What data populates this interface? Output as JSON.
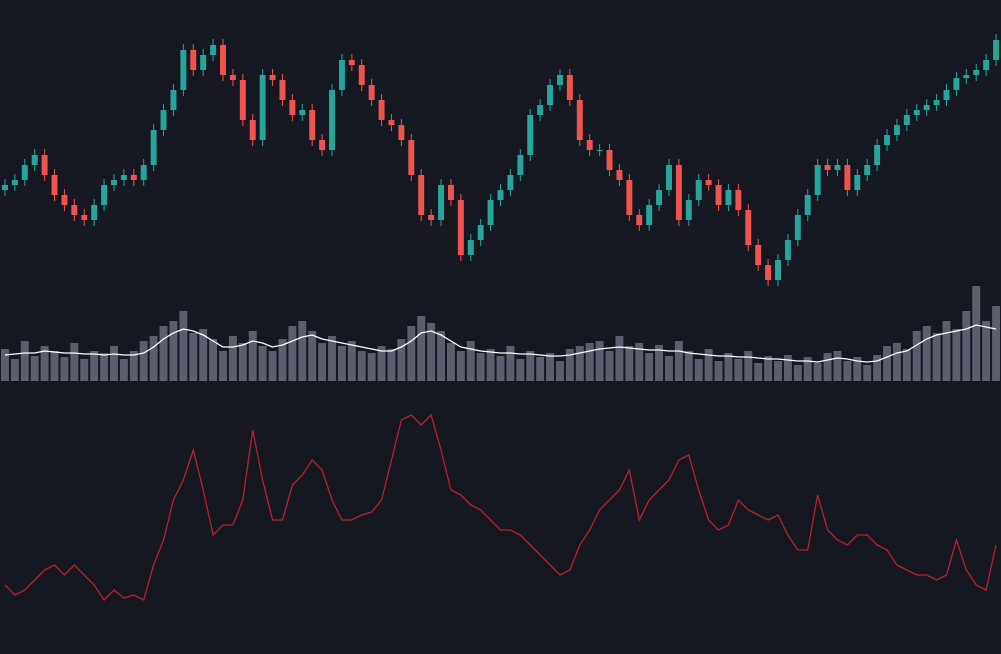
{
  "chart_data": [
    {
      "type": "candlestick",
      "up_color": "#26a69a",
      "down_color": "#ef5350",
      "ylim": [
        0,
        300
      ],
      "open": [
        110,
        115,
        120,
        135,
        145,
        125,
        105,
        95,
        85,
        80,
        95,
        115,
        120,
        125,
        120,
        135,
        170,
        190,
        210,
        250,
        230,
        245,
        255,
        225,
        220,
        180,
        160,
        225,
        220,
        200,
        185,
        190,
        160,
        150,
        210,
        240,
        235,
        215,
        200,
        180,
        175,
        160,
        125,
        85,
        80,
        115,
        100,
        45,
        60,
        75,
        100,
        110,
        125,
        145,
        185,
        195,
        215,
        225,
        200,
        160,
        150,
        150,
        130,
        120,
        85,
        75,
        95,
        110,
        135,
        80,
        100,
        120,
        115,
        95,
        110,
        90,
        55,
        35,
        20,
        40,
        60,
        85,
        105,
        135,
        130,
        135,
        110,
        125,
        135,
        155,
        165,
        175,
        185,
        190,
        195,
        200,
        210,
        222,
        225,
        230,
        240
      ],
      "high": [
        121,
        126,
        141,
        151,
        151,
        131,
        111,
        101,
        91,
        101,
        121,
        126,
        131,
        131,
        141,
        176,
        196,
        216,
        256,
        256,
        251,
        261,
        261,
        231,
        226,
        186,
        231,
        231,
        226,
        206,
        196,
        196,
        166,
        216,
        246,
        246,
        241,
        221,
        206,
        186,
        181,
        166,
        131,
        91,
        121,
        121,
        106,
        66,
        81,
        106,
        116,
        131,
        151,
        191,
        201,
        221,
        231,
        231,
        206,
        166,
        156,
        156,
        136,
        126,
        91,
        101,
        116,
        141,
        141,
        106,
        126,
        126,
        121,
        116,
        116,
        96,
        61,
        41,
        46,
        66,
        91,
        111,
        141,
        141,
        141,
        141,
        131,
        141,
        161,
        171,
        181,
        191,
        196,
        201,
        206,
        216,
        228,
        231,
        236,
        246,
        266
      ],
      "low": [
        104,
        109,
        114,
        129,
        119,
        99,
        89,
        79,
        74,
        74,
        89,
        109,
        114,
        114,
        114,
        129,
        164,
        184,
        204,
        224,
        224,
        239,
        219,
        214,
        174,
        154,
        154,
        214,
        194,
        179,
        179,
        154,
        144,
        144,
        204,
        229,
        209,
        194,
        174,
        169,
        154,
        119,
        79,
        74,
        74,
        94,
        39,
        39,
        54,
        69,
        94,
        104,
        119,
        139,
        179,
        189,
        209,
        194,
        154,
        144,
        144,
        124,
        114,
        79,
        69,
        69,
        89,
        104,
        74,
        74,
        94,
        109,
        89,
        89,
        84,
        49,
        29,
        14,
        14,
        34,
        54,
        79,
        99,
        124,
        124,
        104,
        104,
        119,
        129,
        149,
        159,
        169,
        179,
        184,
        189,
        194,
        204,
        216,
        219,
        224,
        234
      ],
      "close": [
        115,
        120,
        135,
        145,
        125,
        105,
        95,
        85,
        80,
        95,
        115,
        120,
        125,
        120,
        135,
        170,
        190,
        210,
        250,
        230,
        245,
        255,
        225,
        220,
        180,
        160,
        225,
        220,
        200,
        185,
        190,
        160,
        150,
        210,
        240,
        235,
        215,
        200,
        180,
        175,
        160,
        125,
        85,
        80,
        115,
        100,
        45,
        60,
        75,
        100,
        110,
        125,
        145,
        185,
        195,
        215,
        225,
        200,
        160,
        150,
        150,
        130,
        120,
        85,
        75,
        95,
        110,
        135,
        80,
        100,
        120,
        115,
        95,
        110,
        90,
        55,
        35,
        20,
        40,
        60,
        85,
        105,
        135,
        130,
        135,
        110,
        125,
        135,
        155,
        165,
        175,
        185,
        190,
        195,
        200,
        210,
        222,
        225,
        230,
        240,
        260
      ]
    },
    {
      "type": "bar",
      "color": "#5b5e6c",
      "ylim": [
        0,
        140
      ],
      "values": [
        32,
        22,
        40,
        25,
        35,
        30,
        24,
        38,
        22,
        30,
        28,
        35,
        22,
        30,
        40,
        45,
        55,
        60,
        70,
        48,
        52,
        42,
        30,
        45,
        38,
        50,
        35,
        30,
        42,
        55,
        60,
        50,
        38,
        45,
        35,
        40,
        30,
        28,
        35,
        32,
        42,
        55,
        65,
        58,
        50,
        38,
        30,
        40,
        28,
        32,
        25,
        35,
        22,
        30,
        24,
        28,
        20,
        32,
        35,
        38,
        40,
        30,
        45,
        35,
        38,
        28,
        36,
        25,
        40,
        30,
        22,
        32,
        20,
        28,
        22,
        30,
        18,
        25,
        20,
        26,
        16,
        24,
        18,
        28,
        30,
        20,
        24,
        16,
        26,
        35,
        38,
        32,
        50,
        55,
        48,
        60,
        52,
        70,
        95,
        60,
        75
      ],
      "line_color": "#ffffff",
      "line_values": [
        26,
        27,
        28,
        28,
        30,
        29,
        28,
        28,
        27,
        27,
        26,
        27,
        26,
        26,
        28,
        34,
        42,
        48,
        52,
        50,
        46,
        40,
        34,
        34,
        36,
        40,
        38,
        34,
        36,
        40,
        44,
        46,
        42,
        40,
        38,
        36,
        34,
        32,
        30,
        30,
        34,
        40,
        48,
        50,
        46,
        40,
        34,
        32,
        30,
        29,
        28,
        28,
        27,
        27,
        26,
        25,
        25,
        26,
        28,
        30,
        32,
        33,
        34,
        33,
        32,
        31,
        31,
        30,
        30,
        28,
        27,
        26,
        25,
        25,
        24,
        24,
        23,
        22,
        22,
        21,
        20,
        20,
        19,
        21,
        23,
        22,
        20,
        19,
        20,
        24,
        28,
        30,
        36,
        42,
        46,
        48,
        50,
        52,
        56,
        54,
        52
      ]
    },
    {
      "type": "line",
      "color": "#b5242e",
      "ylim": [
        0,
        220
      ],
      "values": [
        35,
        25,
        30,
        40,
        50,
        55,
        45,
        55,
        45,
        35,
        20,
        30,
        22,
        25,
        20,
        55,
        80,
        120,
        140,
        170,
        130,
        85,
        95,
        95,
        120,
        190,
        140,
        100,
        100,
        135,
        145,
        160,
        150,
        120,
        100,
        100,
        105,
        108,
        120,
        160,
        200,
        205,
        195,
        205,
        170,
        130,
        125,
        115,
        110,
        100,
        90,
        90,
        85,
        75,
        65,
        55,
        45,
        50,
        75,
        90,
        110,
        120,
        130,
        150,
        100,
        120,
        130,
        140,
        160,
        165,
        130,
        100,
        90,
        95,
        120,
        110,
        105,
        100,
        105,
        85,
        70,
        70,
        125,
        90,
        80,
        75,
        85,
        85,
        75,
        70,
        55,
        50,
        45,
        45,
        40,
        45,
        80,
        50,
        35,
        30,
        75
      ]
    }
  ]
}
